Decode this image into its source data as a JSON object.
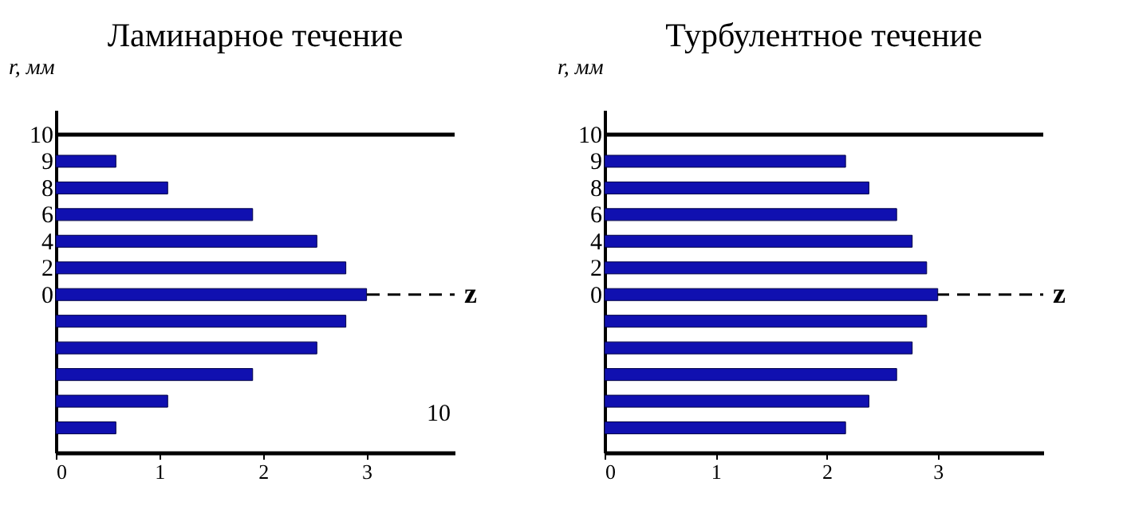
{
  "chart_data": [
    {
      "type": "bar",
      "orientation": "horizontal",
      "title": "Ламинарное течение",
      "ylabel": "r, мм",
      "categories": [
        "10",
        "9",
        "8",
        "6",
        "4",
        "2",
        "0",
        null,
        null,
        null,
        null,
        null
      ],
      "values": [
        null,
        0.58,
        1.08,
        1.9,
        2.52,
        2.8,
        3.0,
        2.8,
        2.52,
        1.9,
        1.08,
        0.58
      ],
      "color": "#1010b0",
      "xlim": [
        0,
        3.85
      ],
      "xticks": [
        0,
        1,
        2,
        3
      ],
      "grid": false,
      "ref_lines": [
        {
          "axis": "y",
          "value": "10",
          "label": null,
          "color": "#000000",
          "line_style": "solid"
        },
        {
          "axis": "y",
          "value": "0",
          "label": "z",
          "color": "#000000",
          "line_style": "dashed"
        }
      ],
      "annotations": [
        "10"
      ]
    },
    {
      "type": "bar",
      "orientation": "horizontal",
      "title": "Турбулентное течение",
      "ylabel": "r, мм",
      "categories": [
        "10",
        "9",
        "8",
        "6",
        "4",
        "2",
        "0",
        null,
        null,
        null,
        null,
        null
      ],
      "values": [
        null,
        2.17,
        2.38,
        2.63,
        2.77,
        2.9,
        3.0,
        2.9,
        2.77,
        2.63,
        2.38,
        2.17
      ],
      "color": "#1010b0",
      "xlim": [
        0,
        3.95
      ],
      "xticks": [
        0,
        1,
        2,
        3
      ],
      "grid": false,
      "ref_lines": [
        {
          "axis": "y",
          "value": "10",
          "label": null,
          "color": "#000000",
          "line_style": "solid"
        },
        {
          "axis": "y",
          "value": "0",
          "label": "z",
          "color": "#000000",
          "line_style": "dashed"
        }
      ]
    }
  ]
}
